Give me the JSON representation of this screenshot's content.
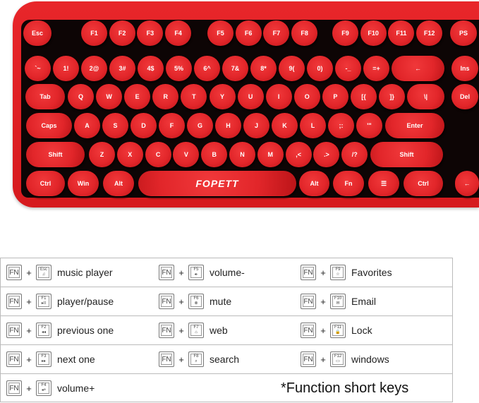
{
  "keyboard": {
    "brand": "FOPETT",
    "colors": {
      "body": "#e2262a",
      "deck": "#0d0505",
      "legend": "#ffffff"
    },
    "rows": [
      [
        "Esc",
        "F1",
        "F2",
        "F3",
        "F4",
        "F5",
        "F6",
        "F7",
        "F8",
        "F9",
        "F10",
        "F11",
        "F12",
        "PS"
      ],
      [
        "`~",
        "1!",
        "2@",
        "3#",
        "4$",
        "5%",
        "6^",
        "7&",
        "8*",
        "9(",
        "0)",
        "-_",
        "=+",
        "←",
        "Ins"
      ],
      [
        "Tab",
        "Q",
        "W",
        "E",
        "R",
        "T",
        "Y",
        "U",
        "I",
        "O",
        "P",
        "[{",
        "]}",
        "\\|",
        "Del"
      ],
      [
        "Caps",
        "A",
        "S",
        "D",
        "F",
        "G",
        "H",
        "J",
        "K",
        "L",
        ";:",
        "'\"",
        "Enter"
      ],
      [
        "Shift",
        "Z",
        "X",
        "C",
        "V",
        "B",
        "N",
        "M",
        ",<",
        ".>",
        "/?",
        "Shift"
      ],
      [
        "Ctrl",
        "Win",
        "Alt",
        "FOPETT",
        "Alt",
        "Fn",
        "☰",
        "Ctrl",
        "←"
      ]
    ]
  },
  "shortcuts": {
    "fn_label": "FN",
    "plus": "+",
    "rows": [
      [
        {
          "key": "Esc",
          "icon": "♫",
          "desc": "music player"
        },
        {
          "key": "F5",
          "icon": "◂-",
          "desc": "volume-"
        },
        {
          "key": "F9",
          "icon": "☆",
          "desc": "Favorites"
        }
      ],
      [
        {
          "key": "F1",
          "icon": "▸II",
          "desc": "player/pause"
        },
        {
          "key": "F6",
          "icon": "⊗",
          "desc": "mute"
        },
        {
          "key": "F10",
          "icon": "✉",
          "desc": "Email"
        }
      ],
      [
        {
          "key": "F2",
          "icon": "◂◂",
          "desc": "previous one"
        },
        {
          "key": "F7",
          "icon": "⌂",
          "desc": "web"
        },
        {
          "key": "F11",
          "icon": "🔒",
          "desc": "Lock"
        }
      ],
      [
        {
          "key": "F3",
          "icon": "▸▸",
          "desc": "next one"
        },
        {
          "key": "F8",
          "icon": "⌕",
          "desc": "search"
        },
        {
          "key": "F12",
          "icon": "▭",
          "desc": "windows"
        }
      ],
      [
        {
          "key": "F4",
          "icon": "◂+",
          "desc": "volume+"
        }
      ]
    ],
    "note": "*Function short keys"
  }
}
